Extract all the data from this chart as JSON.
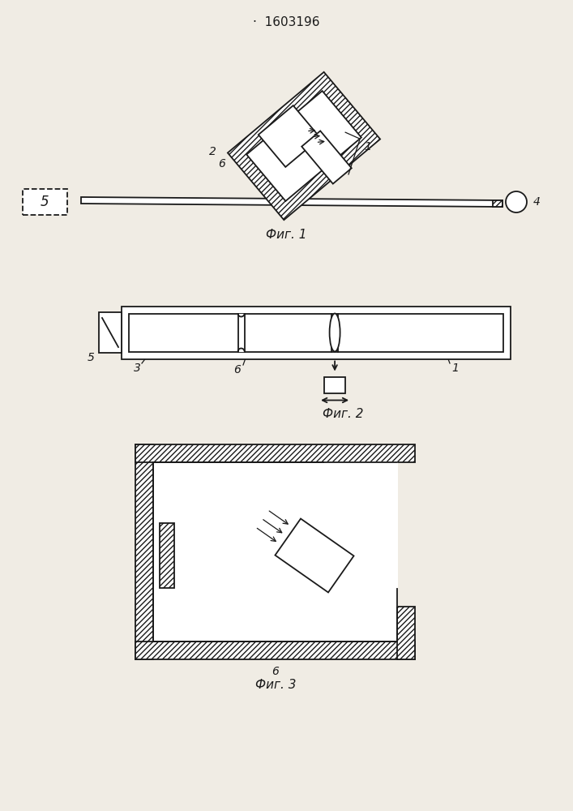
{
  "title": "1603196",
  "fig1_label": "Фиг. 1",
  "fig2_label": "Фиг. 2",
  "fig3_label": "Фиг. 3",
  "bg_color": "#f0ece4",
  "line_color": "#1a1a1a"
}
